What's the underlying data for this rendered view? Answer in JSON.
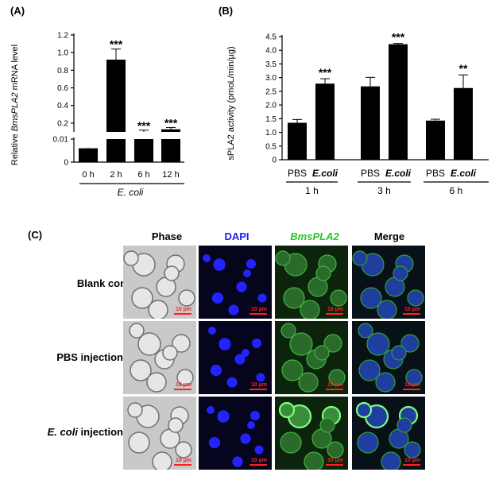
{
  "panels": {
    "a": "(A)",
    "b": "(B)",
    "c": "(C)"
  },
  "chart_data": [
    {
      "type": "bar",
      "panel": "(A)",
      "ylabel_prefix": "Relative ",
      "ylabel_gene": "BmsPLA2",
      "ylabel_suffix": " mRNA level",
      "categories": [
        "0 h",
        "2 h",
        "6 h",
        "12 h"
      ],
      "group_label": "E. coli",
      "values": [
        0.006,
        0.92,
        0.1,
        0.13
      ],
      "errors": [
        0.0005,
        0.12,
        0.02,
        0.02
      ],
      "significance": [
        "",
        "***",
        "***",
        "***"
      ],
      "upper_ticks": [
        "0.2",
        "0.4",
        "0.6",
        "0.8",
        "1.0",
        "1.2"
      ],
      "lower_ticks": [
        "0",
        "0.01"
      ],
      "broken_axis": true,
      "bar_color": "#000000"
    },
    {
      "type": "bar",
      "panel": "(B)",
      "ylabel": "sPLA2 activity (pmoL/min/µg)",
      "categories": [
        "PBS",
        "E.coli",
        "PBS",
        "E.coli",
        "PBS",
        "E.coli"
      ],
      "groups": [
        "1 h",
        "3 h",
        "6 h"
      ],
      "values": [
        1.35,
        2.78,
        2.68,
        4.22,
        1.43,
        2.62
      ],
      "errors": [
        0.12,
        0.18,
        0.33,
        0.03,
        0.05,
        0.48
      ],
      "significance": [
        "",
        "***",
        "",
        "***",
        "",
        "**"
      ],
      "ylim": [
        0,
        4.5
      ],
      "yticks": [
        "0",
        "0.5",
        "1.0",
        "1.5",
        "2.0",
        "2.5",
        "3.0",
        "3.5",
        "4.0",
        "4.5"
      ],
      "bar_color": "#000000"
    }
  ],
  "microscopy": {
    "columns": [
      "Phase",
      "DAPI",
      "BmsPLA2",
      "Merge"
    ],
    "column_colors": [
      "#000000",
      "#1a1aff",
      "#22cc22",
      "#000000"
    ],
    "rows": [
      {
        "label": "Blank control"
      },
      {
        "label_prefix": "",
        "label": "PBS injection"
      },
      {
        "label_italic": "E. coli",
        "label_rest": " injection"
      }
    ],
    "scale_label": "10 µm"
  }
}
